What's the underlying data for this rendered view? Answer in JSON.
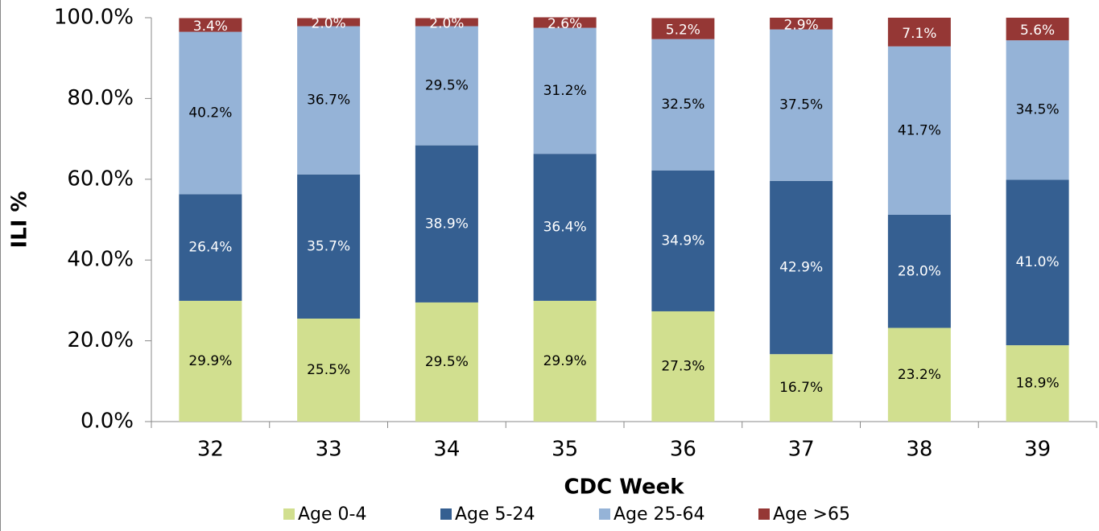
{
  "chart_data": {
    "type": "stacked_bar",
    "x_label": "CDC Week",
    "y_label": "ILI %",
    "categories": [
      "32",
      "33",
      "34",
      "35",
      "36",
      "37",
      "38",
      "39"
    ],
    "series": [
      {
        "name": "Age 0-4",
        "color": "#d1df8f",
        "values": [
          29.9,
          25.5,
          29.5,
          29.9,
          27.3,
          16.7,
          23.2,
          18.9
        ],
        "value_labels": [
          "29.9%",
          "25.5%",
          "29.5%",
          "29.9%",
          "27.3%",
          "16.7%",
          "23.2%",
          "18.9%"
        ]
      },
      {
        "name": "Age 5-24",
        "color": "#355f91",
        "values": [
          26.4,
          35.7,
          38.9,
          36.4,
          34.9,
          42.9,
          28.0,
          41.0
        ],
        "value_labels": [
          "26.4%",
          "35.7%",
          "38.9%",
          "36.4%",
          "34.9%",
          "42.9%",
          "28.0%",
          "41.0%"
        ]
      },
      {
        "name": "Age 25-64",
        "color": "#95b3d7",
        "values": [
          40.2,
          36.7,
          29.5,
          31.2,
          32.5,
          37.5,
          41.7,
          34.5
        ],
        "value_labels": [
          "40.2%",
          "36.7%",
          "29.5%",
          "31.2%",
          "32.5%",
          "37.5%",
          "41.7%",
          "34.5%"
        ]
      },
      {
        "name": "Age >65",
        "color": "#953735",
        "values": [
          3.4,
          2.0,
          2.0,
          2.6,
          5.2,
          2.9,
          7.1,
          5.6
        ],
        "value_labels": [
          "3.4%",
          "2.0%",
          "2.0%",
          "2.6%",
          "5.2%",
          "2.9%",
          "7.1%",
          "5.6%"
        ]
      }
    ],
    "ylim": [
      0,
      100
    ],
    "yticks": [
      {
        "value": 0,
        "label": "0.0%"
      },
      {
        "value": 20,
        "label": "20.0%"
      },
      {
        "value": 40,
        "label": "40.0%"
      },
      {
        "value": 60,
        "label": "60.0%"
      },
      {
        "value": 80,
        "label": "80.0%"
      },
      {
        "value": 100,
        "label": "100.0%"
      }
    ],
    "legend": "bottom"
  }
}
